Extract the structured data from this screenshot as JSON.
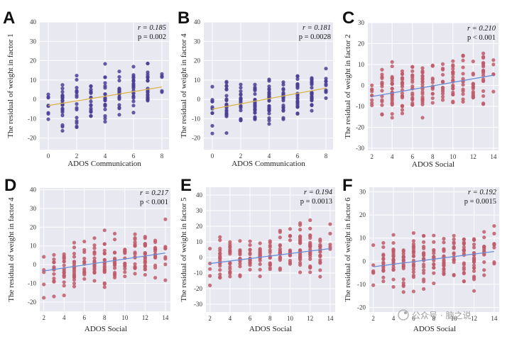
{
  "chart_data": [
    {
      "panel": "A",
      "type": "scatter",
      "xlabel": "ADOS Communication",
      "ylabel": "The residual of weight in factor 1",
      "xlim": [
        -0.6,
        8.5
      ],
      "ylim": [
        -26,
        40
      ],
      "xticks": [
        0,
        2,
        4,
        6,
        8
      ],
      "yticks": [
        -20,
        -10,
        0,
        10,
        20,
        30,
        40
      ],
      "x_labels": [
        "0",
        "2",
        "4",
        "6",
        "8"
      ],
      "y_labels": [
        "-20",
        "-10",
        "0",
        "10",
        "20",
        "30",
        "40"
      ],
      "stat_r": "r = 0.185",
      "stat_p": "p = 0.002",
      "fit": {
        "intercept": -3.2,
        "slope": 1.2
      },
      "x_values": [
        0,
        1,
        2,
        3,
        4,
        5,
        6,
        7,
        8
      ],
      "point_color": "#4b3f94",
      "line_color": "#d9b54a",
      "point_style": "dots"
    },
    {
      "panel": "B",
      "type": "scatter",
      "xlabel": "ADOS Communication",
      "ylabel": "The residual of weight in factor 4",
      "xlim": [
        -0.6,
        8.5
      ],
      "ylim": [
        -26,
        40
      ],
      "xticks": [
        0,
        2,
        4,
        6,
        8
      ],
      "yticks": [
        -20,
        -10,
        0,
        10,
        20,
        30,
        40
      ],
      "x_labels": [
        "0",
        "2",
        "4",
        "6",
        "8"
      ],
      "y_labels": [
        "-20",
        "-10",
        "0",
        "10",
        "20",
        "30",
        "40"
      ],
      "stat_r": "r = 0.181",
      "stat_p": "p = 0.0028",
      "fit": {
        "intercept": -5.0,
        "slope": 1.35
      },
      "x_values": [
        0,
        1,
        2,
        3,
        4,
        5,
        6,
        7,
        8
      ],
      "point_color": "#4b3f94",
      "line_color": "#d9b54a",
      "point_style": "dense"
    },
    {
      "panel": "C",
      "type": "scatter",
      "xlabel": "ADOS Social",
      "ylabel": "The residual of weight in factor 2",
      "xlim": [
        1.6,
        14.5
      ],
      "ylim": [
        -31,
        30
      ],
      "xticks": [
        2,
        4,
        6,
        8,
        10,
        12,
        14
      ],
      "yticks": [
        -30,
        -20,
        -10,
        0,
        10,
        20,
        30
      ],
      "x_labels": [
        "2",
        "4",
        "6",
        "8",
        "10",
        "12",
        "14"
      ],
      "y_labels": [
        "-30",
        "-20",
        "-10",
        "0",
        "10",
        "20",
        "30"
      ],
      "stat_r": "r = 0.210",
      "stat_p": "p < 0.001",
      "fit": {
        "intercept": -7.0,
        "slope": 0.85
      },
      "x_values": [
        2,
        3,
        4,
        5,
        6,
        7,
        8,
        9,
        10,
        11,
        12,
        13,
        14
      ],
      "point_color": "#c05a6a",
      "line_color": "#6b8fd6",
      "point_style": "dots"
    },
    {
      "panel": "D",
      "type": "scatter",
      "xlabel": "ADOS Social",
      "ylabel": "The residual of weight in factor 4",
      "xlim": [
        1.6,
        14.5
      ],
      "ylim": [
        -25,
        41
      ],
      "xticks": [
        2,
        4,
        6,
        8,
        10,
        12,
        14
      ],
      "yticks": [
        -20,
        -10,
        0,
        10,
        20,
        30,
        40
      ],
      "x_labels": [
        "2",
        "4",
        "6",
        "8",
        "10",
        "12",
        "14"
      ],
      "y_labels": [
        "-20",
        "-10",
        "0",
        "10",
        "20",
        "30",
        "40"
      ],
      "stat_r": "r = 0.217",
      "stat_p": "p < 0.001",
      "fit": {
        "intercept": -5.0,
        "slope": 0.8
      },
      "x_values": [
        2,
        3,
        4,
        5,
        6,
        7,
        8,
        9,
        10,
        11,
        12,
        13,
        14
      ],
      "point_color": "#c05a6a",
      "line_color": "#6b8fd6",
      "point_style": "dots"
    },
    {
      "panel": "E",
      "type": "scatter",
      "xlabel": "ADOS Social",
      "ylabel": "The residual of weight in factor 5",
      "xlim": [
        1.6,
        14.5
      ],
      "ylim": [
        -35,
        45
      ],
      "xticks": [
        2,
        4,
        6,
        8,
        10,
        12,
        14
      ],
      "yticks": [
        -30,
        -20,
        -10,
        0,
        10,
        20,
        30,
        40
      ],
      "x_labels": [
        "2",
        "4",
        "6",
        "8",
        "10",
        "12",
        "14"
      ],
      "y_labels": [
        "-30",
        "-20",
        "-10",
        "0",
        "10",
        "20",
        "30",
        "40"
      ],
      "stat_r": "r = 0.194",
      "stat_p": "p = 0.0013",
      "fit": {
        "intercept": -5.5,
        "slope": 0.8
      },
      "x_values": [
        2,
        3,
        4,
        5,
        6,
        7,
        8,
        9,
        10,
        11,
        12,
        13,
        14
      ],
      "point_color": "#c05a6a",
      "line_color": "#6b8fd6",
      "point_style": "dots"
    },
    {
      "panel": "F",
      "type": "scatter",
      "xlabel": "ADOS Social",
      "ylabel": "The residual of weight in factor 6",
      "xlim": [
        1.6,
        14.5
      ],
      "ylim": [
        -22,
        32
      ],
      "xticks": [
        2,
        4,
        6,
        8,
        10,
        12,
        14
      ],
      "yticks": [
        -20,
        -10,
        0,
        10,
        20,
        30
      ],
      "x_labels": [
        "2",
        "4",
        "6",
        "8",
        "10",
        "12",
        "14"
      ],
      "y_labels": [
        "-20",
        "-10",
        "0",
        "10",
        "20",
        "30"
      ],
      "stat_r": "r = 0.192",
      "stat_p": "p = 0.0015",
      "fit": {
        "intercept": -3.5,
        "slope": 0.55
      },
      "x_values": [
        2,
        3,
        4,
        5,
        6,
        7,
        8,
        9,
        10,
        11,
        12,
        13,
        14
      ],
      "point_color": "#c05a6a",
      "line_color": "#6b8fd6",
      "point_style": "dots"
    }
  ],
  "watermark": "公众号 · 脑之说",
  "colors": {
    "plot_bg": "#e8e8f1",
    "grid": "#ffffff"
  }
}
